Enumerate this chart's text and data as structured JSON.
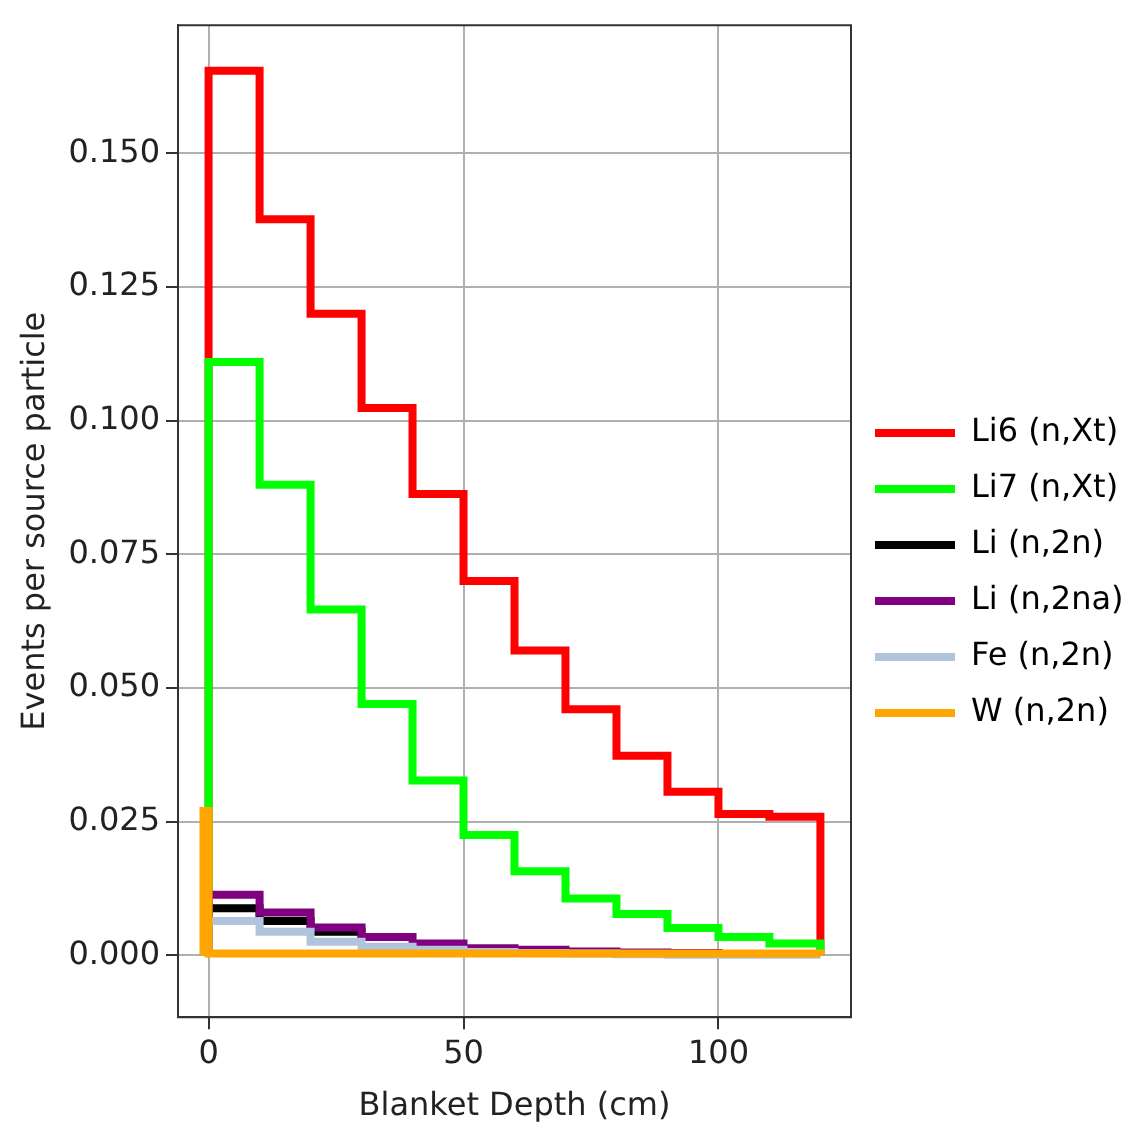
{
  "chart_data": {
    "type": "step",
    "xlabel": "Blanket Depth (cm)",
    "ylabel": "Events per source particle",
    "x": [
      0,
      0,
      10,
      20,
      30,
      40,
      50,
      60,
      70,
      80,
      90,
      100,
      110,
      120
    ],
    "series": [
      {
        "name": "Li6 (n,Xt)",
        "color": "#ff0000",
        "values": [
          0,
          0.1655,
          0.1377,
          0.12,
          0.1024,
          0.0863,
          0.07,
          0.057,
          0.046,
          0.0373,
          0.0306,
          0.0264,
          0.0259,
          0
        ]
      },
      {
        "name": "Li7 (n,Xt)",
        "color": "#00ff00",
        "values": [
          0,
          0.111,
          0.088,
          0.0647,
          0.047,
          0.0327,
          0.0225,
          0.0157,
          0.0106,
          0.0077,
          0.0051,
          0.0034,
          0.0022,
          0
        ]
      },
      {
        "name": "Li (n,2n)",
        "color": "#000000",
        "values": [
          0,
          0.0088,
          0.0064,
          0.0044,
          0.0028,
          null,
          null,
          null,
          null,
          null,
          null,
          null,
          null,
          null
        ]
      },
      {
        "name": "Li (n,2na)",
        "color": "#800080",
        "values": [
          0,
          0.0113,
          0.008,
          0.0052,
          0.0034,
          0.0022,
          0.0013,
          0.001,
          0.0007,
          0.0005,
          0.0004,
          0.0003,
          null,
          null
        ]
      },
      {
        "name": "Fe (n,2n)",
        "color": "#b0c4de",
        "values": [
          0,
          0.0064,
          0.0044,
          0.0025,
          0.0016,
          0.001,
          0.0006,
          0.0004,
          0.0003,
          0.0002,
          0.0001,
          0.0001,
          0.0001,
          0
        ]
      },
      {
        "name": "W (n,2n)",
        "color": "#ffa500",
        "x": [
          -1,
          -1,
          0,
          120
        ],
        "values": [
          0,
          0.027,
          0.0003,
          0
        ]
      }
    ],
    "xlim": [
      -6,
      126
    ],
    "xticks": [
      0,
      50,
      100
    ],
    "ylim": [
      -0.0116,
      0.174
    ],
    "yticks": [
      {
        "value": 0,
        "label": "0.000"
      },
      0.025,
      {
        "value": 0.05,
        "label": "0.050"
      },
      0.075,
      {
        "value": 0.1,
        "label": "0.100"
      },
      0.125,
      {
        "value": 0.15,
        "label": "0.150"
      }
    ],
    "grid": true,
    "legend": "right",
    "line_style": "solid",
    "marker": "none"
  }
}
